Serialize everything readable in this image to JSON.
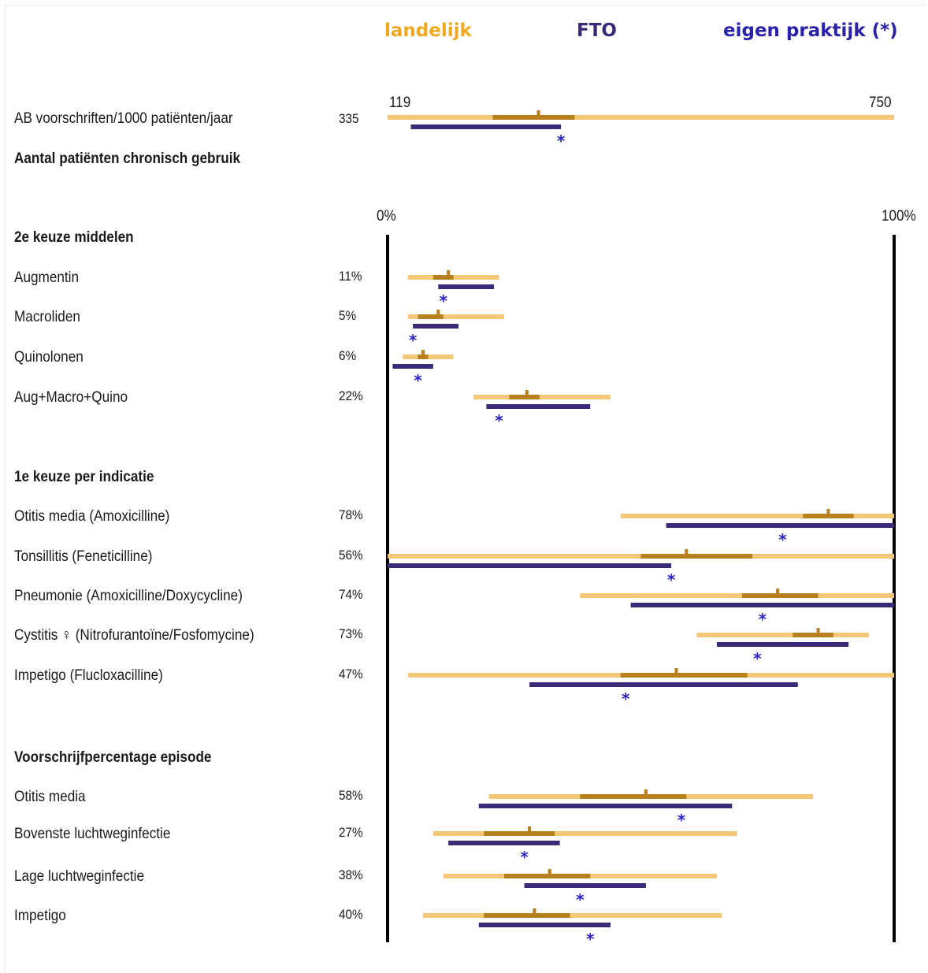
{
  "legend": {
    "landelijk": "landelijk",
    "fto": "FTO",
    "eigen": "eigen praktijk (*)"
  },
  "colors": {
    "landelijk_range": "#f5c878",
    "landelijk_iqr": "#b8801c",
    "fto": "#3a2a78",
    "eigen_star": "#2a22c8",
    "axis": "#000000"
  },
  "chart_data": [
    {
      "type": "range",
      "title": "",
      "axis_min_label": "119",
      "axis_max_label": "750",
      "xlim": [
        119,
        750
      ],
      "rows": [
        {
          "label": "AB voorschriften/1000 patiënten/jaar",
          "value_text": "335",
          "own": 335,
          "national": [
            119,
            750
          ],
          "national_iqr": [
            250,
            352
          ],
          "national_median": 307,
          "fto": [
            148,
            335
          ]
        }
      ]
    },
    {
      "type": "range",
      "title": "",
      "axis_min_label": "0%",
      "axis_max_label": "100%",
      "xlim": [
        0,
        100
      ],
      "sections": [
        {
          "heading": "Aantal patiënten chronisch gebruik",
          "rows": []
        },
        {
          "heading": "2e keuze middelen",
          "rows": [
            {
              "label": "Augmentin",
              "value_text": "11%",
              "own": 11,
              "national": [
                4,
                22
              ],
              "national_iqr": [
                9,
                13
              ],
              "national_median": 12,
              "fto": [
                10,
                21
              ]
            },
            {
              "label": "Macroliden",
              "value_text": "5%",
              "own": 5,
              "national": [
                4,
                23
              ],
              "national_iqr": [
                6,
                11
              ],
              "national_median": 10,
              "fto": [
                5,
                14
              ]
            },
            {
              "label": "Quinolonen",
              "value_text": "6%",
              "own": 6,
              "national": [
                3,
                13
              ],
              "national_iqr": [
                6,
                8
              ],
              "national_median": 7,
              "fto": [
                1,
                9
              ]
            },
            {
              "label": "Aug+Macro+Quino",
              "value_text": "22%",
              "own": 22,
              "national": [
                17,
                44
              ],
              "national_iqr": [
                24,
                30
              ],
              "national_median": 27.5,
              "fto": [
                19.5,
                40
              ]
            }
          ]
        },
        {
          "heading": "1e keuze per indicatie",
          "rows": [
            {
              "label": "Otitis media (Amoxicilline)",
              "value_text": "78%",
              "own": 78,
              "national": [
                46,
                100
              ],
              "national_iqr": [
                82,
                92
              ],
              "national_median": 87,
              "fto": [
                55,
                100
              ]
            },
            {
              "label": "Tonsillitis (Feneticilline)",
              "value_text": "56%",
              "own": 56,
              "national": [
                0,
                100
              ],
              "national_iqr": [
                50,
                72
              ],
              "national_median": 59,
              "fto": [
                0,
                56
              ]
            },
            {
              "label": "Pneumonie (Amoxicilline/Doxycycline)",
              "value_text": "74%",
              "own": 74,
              "national": [
                38,
                100
              ],
              "national_iqr": [
                70,
                85
              ],
              "national_median": 77,
              "fto": [
                48,
                100
              ]
            },
            {
              "label": "Cystitis ♀ (Nitrofurantoïne/Fosfomycine)",
              "value_text": "73%",
              "own": 73,
              "national": [
                61,
                95
              ],
              "national_iqr": [
                80,
                88
              ],
              "national_median": 85,
              "fto": [
                65,
                91
              ]
            },
            {
              "label": "Impetigo (Flucloxacilline)",
              "value_text": "47%",
              "own": 47,
              "national": [
                4,
                100
              ],
              "national_iqr": [
                46,
                71
              ],
              "national_median": 57,
              "fto": [
                28,
                81
              ]
            }
          ]
        },
        {
          "heading": "Voorschrijfpercentage episode",
          "rows": [
            {
              "label": "Otitis media",
              "value_text": "58%",
              "own": 58,
              "national": [
                20,
                84
              ],
              "national_iqr": [
                38,
                59
              ],
              "national_median": 51,
              "fto": [
                18,
                68
              ]
            },
            {
              "label": "Bovenste luchtweginfectie",
              "value_text": "27%",
              "own": 27,
              "national": [
                9,
                69
              ],
              "national_iqr": [
                19,
                33
              ],
              "national_median": 28,
              "fto": [
                12,
                34
              ]
            },
            {
              "label": "Lage luchtweginfectie",
              "value_text": "38%",
              "own": 38,
              "national": [
                11,
                65
              ],
              "national_iqr": [
                23,
                40
              ],
              "national_median": 32,
              "fto": [
                27,
                51
              ]
            },
            {
              "label": "Impetigo",
              "value_text": "40%",
              "own": 40,
              "national": [
                7,
                66
              ],
              "national_iqr": [
                19,
                36
              ],
              "national_median": 29,
              "fto": [
                18,
                44
              ]
            }
          ]
        }
      ]
    }
  ]
}
